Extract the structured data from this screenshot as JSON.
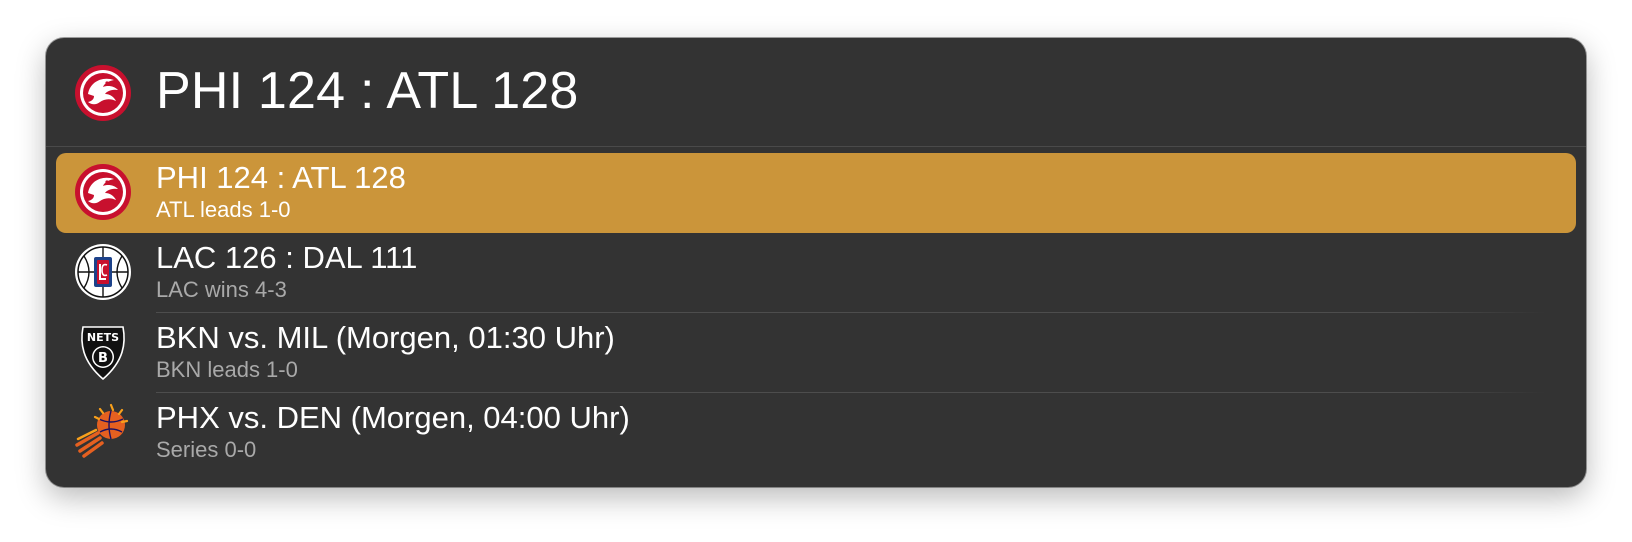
{
  "search": {
    "query": "PHI 124 : ATL 128",
    "icon": "hawks-logo-icon"
  },
  "results": [
    {
      "title": "PHI 124 : ATL 128",
      "subtitle": "ATL leads 1-0",
      "icon": "hawks-logo-icon",
      "selected": true
    },
    {
      "title": "LAC 126 : DAL 111",
      "subtitle": "LAC wins 4-3",
      "icon": "clippers-logo-icon",
      "selected": false
    },
    {
      "title": "BKN vs. MIL (Morgen, 01:30 Uhr)",
      "subtitle": "BKN leads 1-0",
      "icon": "nets-logo-icon",
      "selected": false
    },
    {
      "title": "PHX vs. DEN (Morgen, 04:00 Uhr)",
      "subtitle": "Series 0-0",
      "icon": "suns-logo-icon",
      "selected": false
    }
  ],
  "nets_logo_text": "NETS",
  "nets_logo_letter": "B",
  "colors": {
    "window_bg": "#333333",
    "selection": "#cb953a",
    "hawks_red": "#c8102e",
    "clippers_blue": "#1d428a",
    "clippers_red": "#c8102e",
    "suns_orange": "#e56020"
  }
}
